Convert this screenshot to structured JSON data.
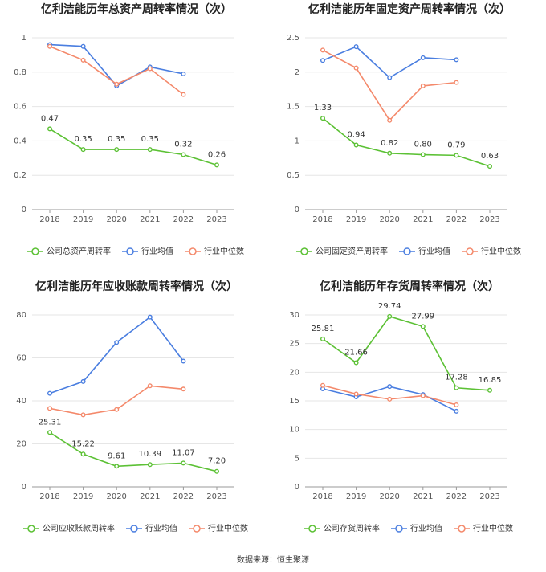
{
  "chart_data": [
    {
      "type": "line",
      "title": "亿利洁能历年总资产周转率情况（次）",
      "categories": [
        "2018",
        "2019",
        "2020",
        "2021",
        "2022",
        "2023"
      ],
      "ylim": [
        0,
        1
      ],
      "yticks": [
        0,
        0.2,
        0.4,
        0.6,
        0.8,
        1
      ],
      "grid": true,
      "series": [
        {
          "name": "公司总资产周转率",
          "color": "#5cc135",
          "values": [
            0.47,
            0.35,
            0.35,
            0.35,
            0.32,
            0.26
          ],
          "value_labels": [
            "0.47",
            "0.35",
            "0.35",
            "0.35",
            "0.32",
            "0.26"
          ]
        },
        {
          "name": "行业均值",
          "color": "#4a7ee0",
          "values": [
            0.96,
            0.95,
            0.72,
            0.83,
            0.79,
            null
          ]
        },
        {
          "name": "行业中位数",
          "color": "#f4896b",
          "values": [
            0.95,
            0.87,
            0.73,
            0.82,
            0.67,
            null
          ]
        }
      ]
    },
    {
      "type": "line",
      "title": "亿利洁能历年固定资产周转率情况（次）",
      "categories": [
        "2018",
        "2019",
        "2020",
        "2021",
        "2022",
        "2023"
      ],
      "ylim": [
        0,
        2.5
      ],
      "yticks": [
        0,
        0.5,
        1,
        1.5,
        2,
        2.5
      ],
      "grid": true,
      "series": [
        {
          "name": "公司固定资产周转率",
          "color": "#5cc135",
          "values": [
            1.33,
            0.94,
            0.82,
            0.8,
            0.79,
            0.63
          ],
          "value_labels": [
            "1.33",
            "0.94",
            "0.82",
            "0.80",
            "0.79",
            "0.63"
          ]
        },
        {
          "name": "行业均值",
          "color": "#4a7ee0",
          "values": [
            2.17,
            2.37,
            1.92,
            2.21,
            2.18,
            null
          ]
        },
        {
          "name": "行业中位数",
          "color": "#f4896b",
          "values": [
            2.32,
            2.06,
            1.3,
            1.8,
            1.85,
            null
          ]
        }
      ]
    },
    {
      "type": "line",
      "title": "亿利洁能历年应收账款周转率情况（次）",
      "categories": [
        "2018",
        "2019",
        "2020",
        "2021",
        "2022",
        "2023"
      ],
      "ylim": [
        0,
        80
      ],
      "yticks": [
        0,
        20,
        40,
        60,
        80
      ],
      "grid": true,
      "series": [
        {
          "name": "公司应收账款周转率",
          "color": "#5cc135",
          "values": [
            25.31,
            15.22,
            9.61,
            10.39,
            11.07,
            7.2
          ],
          "value_labels": [
            "25.31",
            "15.22",
            "9.61",
            "10.39",
            "11.07",
            "7.20"
          ]
        },
        {
          "name": "行业均值",
          "color": "#4a7ee0",
          "values": [
            43.5,
            49,
            67.2,
            79,
            58.5,
            null
          ]
        },
        {
          "name": "行业中位数",
          "color": "#f4896b",
          "values": [
            36.5,
            33.5,
            36,
            47,
            45.5,
            null
          ]
        }
      ]
    },
    {
      "type": "line",
      "title": "亿利洁能历年存货周转率情况（次）",
      "categories": [
        "2018",
        "2019",
        "2020",
        "2021",
        "2022",
        "2023"
      ],
      "ylim": [
        0,
        30
      ],
      "yticks": [
        0,
        5,
        10,
        15,
        20,
        25,
        30
      ],
      "grid": true,
      "series": [
        {
          "name": "公司存货周转率",
          "color": "#5cc135",
          "values": [
            25.81,
            21.66,
            29.74,
            27.99,
            17.28,
            16.85
          ],
          "value_labels": [
            "25.81",
            "21.66",
            "29.74",
            "27.99",
            "17.28",
            "16.85"
          ]
        },
        {
          "name": "行业均值",
          "color": "#4a7ee0",
          "values": [
            17.1,
            15.7,
            17.5,
            16.1,
            13.2,
            null
          ]
        },
        {
          "name": "行业中位数",
          "color": "#f4896b",
          "values": [
            17.7,
            16.2,
            15.3,
            15.9,
            14.3,
            null
          ]
        }
      ]
    }
  ],
  "source": "数据来源：恒生聚源"
}
